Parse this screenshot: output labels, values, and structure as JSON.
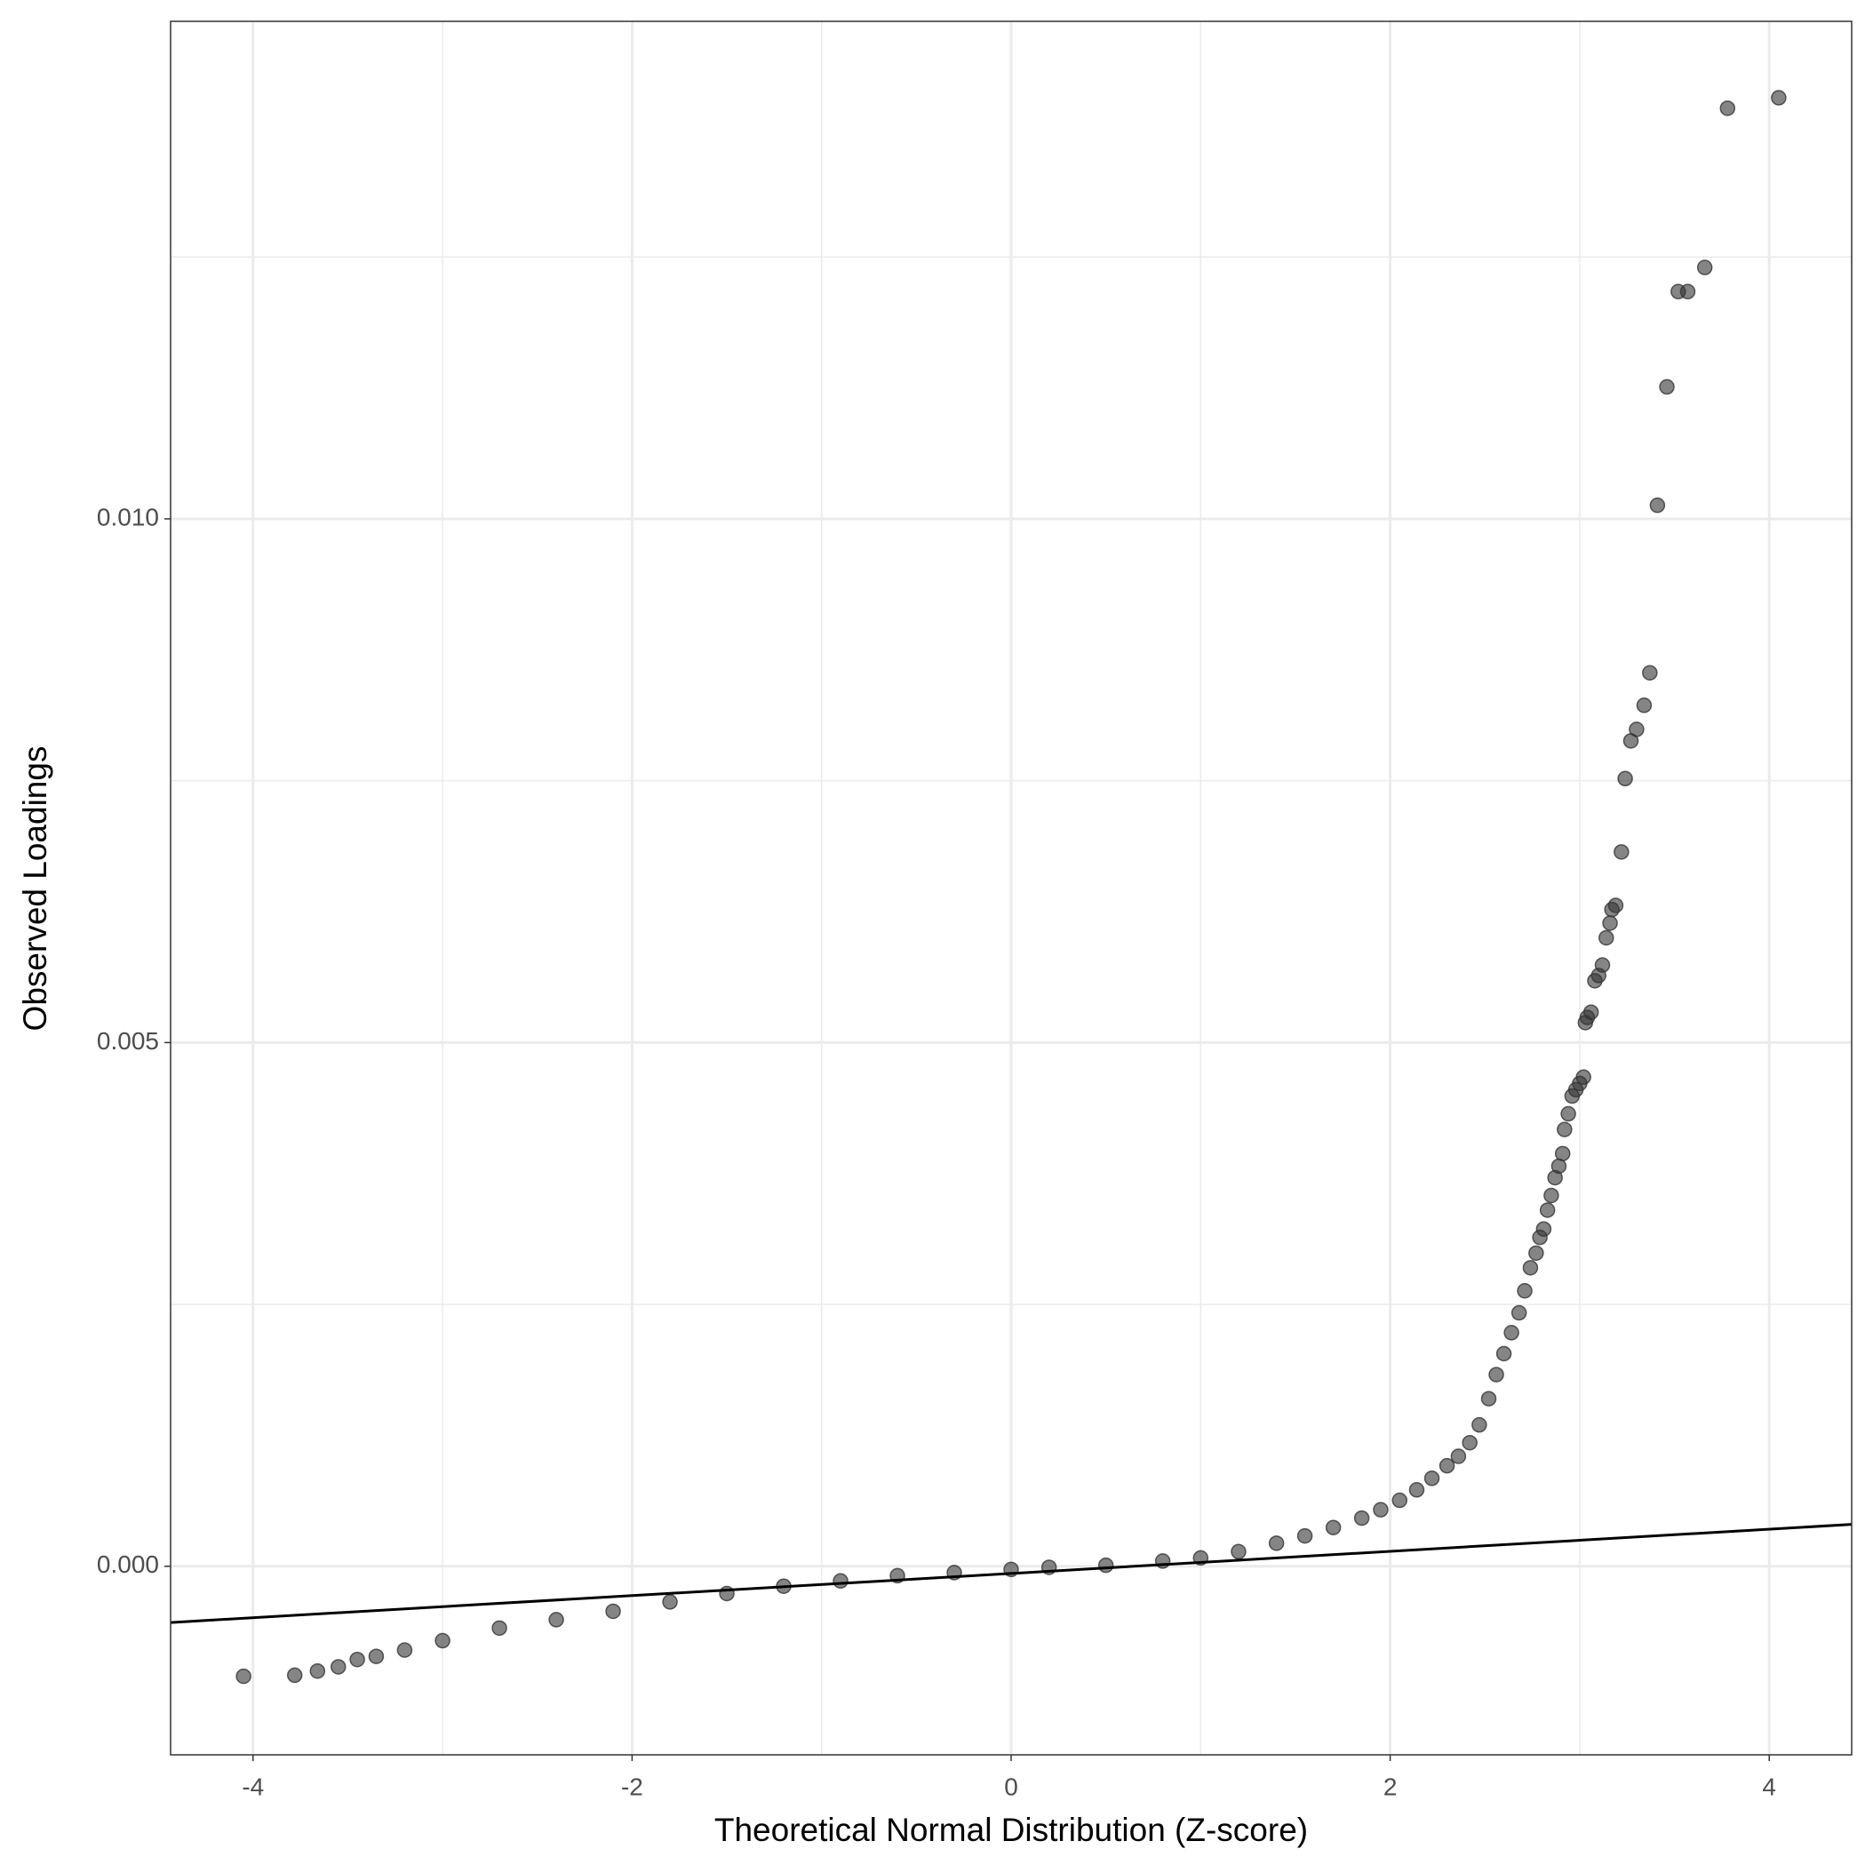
{
  "chart_data": {
    "type": "scatter",
    "x_label": "Theoretical Normal Distribution (Z-score)",
    "y_label": "Observed Loadings",
    "xlim": [
      -4.435,
      4.435
    ],
    "ylim": [
      -0.0018,
      0.01475
    ],
    "xticks": [
      -4,
      -2,
      0,
      2,
      4
    ],
    "yticks": [
      {
        "value": 0,
        "label": "0.000"
      },
      {
        "value": 0.005,
        "label": "0.005"
      },
      {
        "value": 0.01,
        "label": "0.010"
      }
    ],
    "minor_xticks": [
      -3,
      -1,
      1,
      3
    ],
    "minor_yticks": [
      0.0025,
      0.0075,
      0.0125
    ],
    "grid": true,
    "color": "#333333",
    "x": [
      4.05,
      3.78,
      3.66,
      3.57,
      3.52,
      3.46,
      3.41,
      3.37,
      3.34,
      3.3,
      3.27,
      3.24,
      3.22,
      3.19,
      3.17,
      3.16,
      3.14,
      3.12,
      3.1,
      3.08,
      3.06,
      3.04,
      3.03,
      3.02,
      3.0,
      2.98,
      2.96,
      2.94,
      2.92,
      2.91,
      2.89,
      2.87,
      2.85,
      2.83,
      2.81,
      2.79,
      2.77,
      2.74,
      2.71,
      2.68,
      2.64,
      2.6,
      2.56,
      2.52,
      2.47,
      2.42,
      2.36,
      2.3,
      2.22,
      2.14,
      2.05,
      1.95,
      1.85,
      1.7,
      1.55,
      1.4,
      1.2,
      1.0,
      0.8,
      0.5,
      0.2,
      0.0,
      -0.3,
      -0.6,
      -0.9,
      -1.2,
      -1.5,
      -1.8,
      -2.1,
      -2.4,
      -2.7,
      -3.0,
      -3.2,
      -3.35,
      -3.45,
      -3.55,
      -3.66,
      -3.78,
      -4.05
    ],
    "y": [
      0.01402,
      0.01392,
      0.0124,
      0.01217,
      0.01217,
      0.01126,
      0.01013,
      0.00853,
      0.00822,
      0.00799,
      0.00788,
      0.00752,
      0.00682,
      0.00631,
      0.00627,
      0.00614,
      0.006,
      0.00574,
      0.00564,
      0.00559,
      0.00529,
      0.00524,
      0.00519,
      0.00467,
      0.00461,
      0.00455,
      0.00449,
      0.00432,
      0.00417,
      0.00394,
      0.00382,
      0.00371,
      0.00354,
      0.0034,
      0.00322,
      0.00314,
      0.00299,
      0.00285,
      0.00263,
      0.00242,
      0.00223,
      0.00203,
      0.00183,
      0.0016,
      0.00135,
      0.00118,
      0.00105,
      0.00096,
      0.00084,
      0.00073,
      0.00063,
      0.00054,
      0.00046,
      0.00037,
      0.00029,
      0.00022,
      0.00014,
      8e-05,
      5e-05,
      1e-05,
      -1e-05,
      -3e-05,
      -6e-05,
      -9e-05,
      -0.00014,
      -0.00019,
      -0.00026,
      -0.00034,
      -0.00043,
      -0.00051,
      -0.00059,
      -0.00071,
      -0.0008,
      -0.00086,
      -0.00089,
      -0.00096,
      -0.001,
      -0.00104,
      -0.00105
    ],
    "line": {
      "x": [
        -4.435,
        4.435
      ],
      "y": [
        -0.000537,
        0.0004
      ],
      "color": "#000000"
    }
  }
}
